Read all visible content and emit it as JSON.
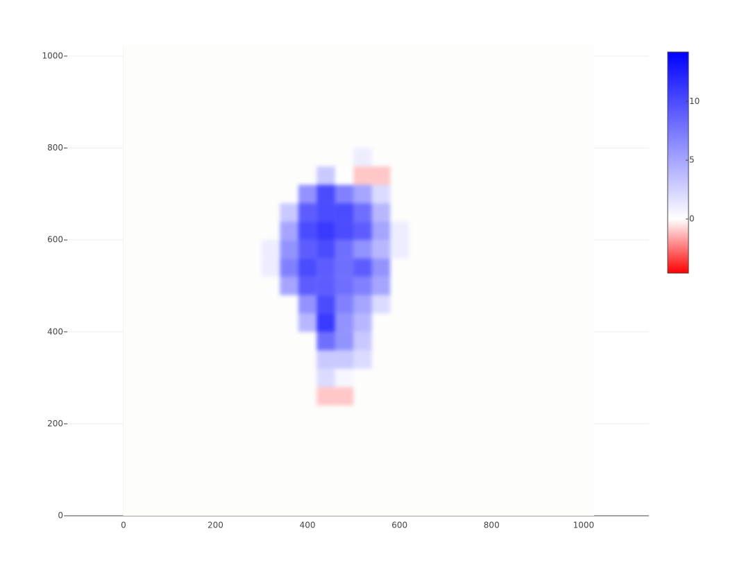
{
  "chart_data": {
    "type": "heatmap",
    "x": [
      300,
      340,
      380,
      420,
      460,
      500,
      540,
      580,
      620
    ],
    "y": [
      240,
      280,
      320,
      360,
      400,
      440,
      480,
      520,
      560,
      600,
      640,
      680,
      720,
      760,
      800
    ],
    "z": [
      [
        null,
        null,
        null,
        -1,
        -1,
        null,
        null,
        null
      ],
      [
        null,
        null,
        null,
        2,
        0.5,
        null,
        null,
        null
      ],
      [
        null,
        null,
        null,
        3,
        3,
        2,
        null,
        null
      ],
      [
        null,
        null,
        null,
        8,
        6,
        3,
        null,
        null
      ],
      [
        null,
        null,
        4,
        11,
        6,
        4,
        null,
        null
      ],
      [
        null,
        null,
        6,
        10,
        7,
        5,
        2,
        null
      ],
      [
        null,
        5,
        9,
        9,
        8,
        7,
        5,
        null
      ],
      [
        1,
        7,
        10,
        9,
        8,
        9,
        6,
        null
      ],
      [
        1,
        6,
        9,
        10,
        8,
        6,
        4,
        1
      ],
      [
        null,
        5,
        10,
        11,
        10,
        9,
        5,
        1
      ],
      [
        null,
        3,
        9,
        10,
        10,
        8,
        4,
        null
      ],
      [
        null,
        null,
        6,
        10,
        7,
        5,
        2,
        null
      ],
      [
        null,
        null,
        null,
        3,
        0,
        -1,
        -1,
        null
      ],
      [
        null,
        null,
        null,
        null,
        null,
        1,
        null,
        null
      ]
    ],
    "xlim": [
      -122,
      1142
    ],
    "ylim": [
      0,
      1024
    ],
    "xticks": [
      0,
      200,
      400,
      600,
      800,
      1000
    ],
    "yticks": [
      0,
      200,
      400,
      600,
      800,
      1000
    ],
    "grid": true,
    "zlim": [
      -4.6,
      14.2
    ],
    "colorbar_ticks": [
      0,
      5,
      10
    ],
    "colorscale": [
      [
        0,
        "#ff0000"
      ],
      [
        0.245,
        "#ffffff"
      ],
      [
        1,
        "#0000ff"
      ]
    ]
  }
}
